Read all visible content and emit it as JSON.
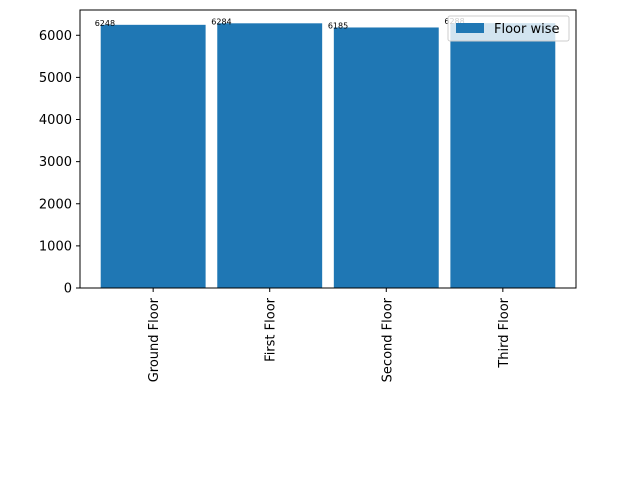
{
  "chart_data": {
    "type": "bar",
    "categories": [
      "Ground Floor",
      "First Floor",
      "Second Floor",
      "Third Floor"
    ],
    "series": [
      {
        "name": "Floor wise",
        "values": [
          6248,
          6284,
          6185,
          6288
        ],
        "color": "#1f77b4"
      }
    ],
    "data_labels": [
      "6248",
      "6284",
      "6185",
      "6288"
    ],
    "ylim": [
      0,
      6600
    ],
    "yticks": [
      0,
      1000,
      2000,
      3000,
      4000,
      5000,
      6000
    ],
    "xtick_rotation": "vertical",
    "title": "",
    "xlabel": "",
    "ylabel": "",
    "grid": false,
    "legend": {
      "placement": "upper right"
    }
  }
}
